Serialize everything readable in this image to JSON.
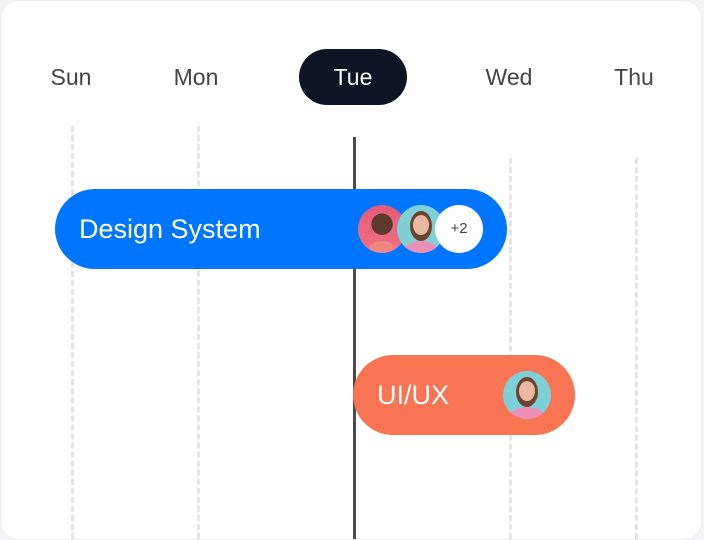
{
  "days": [
    "Sun",
    "Mon",
    "Tue",
    "Wed",
    "Thu"
  ],
  "active_day": "Tue",
  "events": [
    {
      "title": "Design System",
      "color": "#0075ff",
      "extra_count": "+2",
      "avatars": [
        "man-with-glasses-avatar",
        "woman-pink-sweater-avatar"
      ]
    },
    {
      "title": "UI/UX",
      "color": "#f97452",
      "avatars": [
        "woman-pink-sweater-avatar"
      ]
    }
  ],
  "colors": {
    "active_day_bg": "#0e1426",
    "current_time_line": "#4a4a52"
  }
}
